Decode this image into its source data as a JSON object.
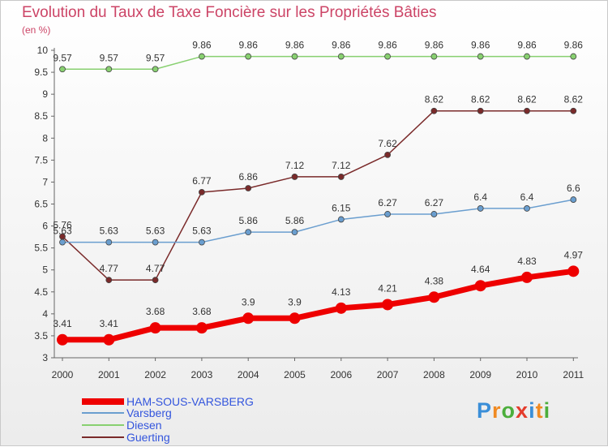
{
  "title": "Evolution du Taux de Taxe Foncière sur les Propriétés Bâties",
  "unit_label": "(en %)",
  "logo": {
    "text": "Proxiti",
    "letters": [
      "P",
      "r",
      "o",
      "x",
      "i",
      "t",
      "i"
    ],
    "colors": [
      "#3a8ed8",
      "#f08a22",
      "#4cae3c",
      "#e43c2c",
      "#3a8ed8",
      "#f08a22",
      "#4cae3c"
    ]
  },
  "chart_data": {
    "type": "line",
    "categories": [
      "2000",
      "2001",
      "2002",
      "2003",
      "2004",
      "2005",
      "2006",
      "2007",
      "2008",
      "2009",
      "2010",
      "2011"
    ],
    "ylim": [
      3,
      10
    ],
    "yticks": [
      "3",
      "3.5",
      "4",
      "4.5",
      "5",
      "5.5",
      "6",
      "6.5",
      "7",
      "7.5",
      "8",
      "8.5",
      "9",
      "9.5",
      "10"
    ],
    "grid": false,
    "legend_position": "bottom-left",
    "series": [
      {
        "name": "HAM-SOUS-VARSBERG",
        "color": "#ee0000",
        "values": [
          3.41,
          3.41,
          3.68,
          3.68,
          3.9,
          3.9,
          4.13,
          4.21,
          4.38,
          4.64,
          4.83,
          4.97
        ],
        "labels": [
          "3.41",
          "3.41",
          "3.68",
          "3.68",
          "3.9",
          "3.9",
          "4.13",
          "4.21",
          "4.38",
          "4.64",
          "4.83",
          "4.97"
        ]
      },
      {
        "name": "Varsberg",
        "color": "#6a9ecf",
        "values": [
          5.63,
          5.63,
          5.63,
          5.63,
          5.86,
          5.86,
          6.15,
          6.27,
          6.27,
          6.4,
          6.4,
          6.6
        ],
        "labels": [
          "5.63",
          "5.63",
          "5.63",
          "5.63",
          "5.86",
          "5.86",
          "6.15",
          "6.27",
          "6.27",
          "6.4",
          "6.4",
          "6.6"
        ]
      },
      {
        "name": "Diesen",
        "color": "#88d070",
        "values": [
          9.57,
          9.57,
          9.57,
          9.86,
          9.86,
          9.86,
          9.86,
          9.86,
          9.86,
          9.86,
          9.86,
          9.86
        ],
        "labels": [
          "9.57",
          "9.57",
          "9.57",
          "9.86",
          "9.86",
          "9.86",
          "9.86",
          "9.86",
          "9.86",
          "9.86",
          "9.86",
          "9.86"
        ]
      },
      {
        "name": "Guerting",
        "color": "#7a2a2a",
        "values": [
          5.76,
          4.77,
          4.77,
          6.77,
          6.86,
          7.12,
          7.12,
          7.62,
          8.62,
          8.62,
          8.62,
          8.62
        ],
        "labels": [
          "5.76",
          "4.77",
          "4.77",
          "6.77",
          "6.86",
          "7.12",
          "7.12",
          "7.62",
          "8.62",
          "8.62",
          "8.62",
          "8.62"
        ]
      }
    ]
  }
}
